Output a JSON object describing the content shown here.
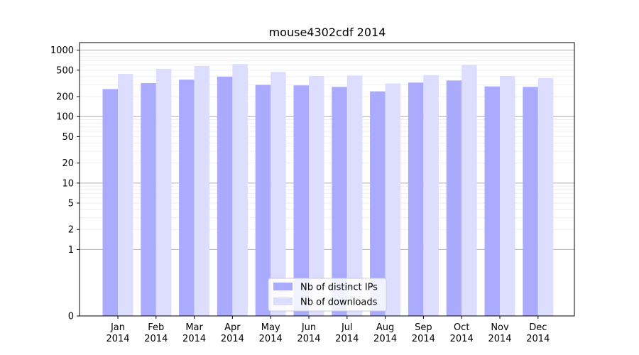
{
  "chart_data": {
    "type": "bar",
    "title": "mouse4302cdf 2014",
    "y_scale": "symlog",
    "ylim": [
      0,
      1300
    ],
    "y_ticks": [
      0,
      1,
      2,
      5,
      10,
      20,
      50,
      100,
      200,
      500,
      1000
    ],
    "grid": "horizontal",
    "legend_position": "bottom-center",
    "categories": [
      [
        "Jan",
        "2014"
      ],
      [
        "Feb",
        "2014"
      ],
      [
        "Mar",
        "2014"
      ],
      [
        "Apr",
        "2014"
      ],
      [
        "May",
        "2014"
      ],
      [
        "Jun",
        "2014"
      ],
      [
        "Jul",
        "2014"
      ],
      [
        "Aug",
        "2014"
      ],
      [
        "Sep",
        "2014"
      ],
      [
        "Oct",
        "2014"
      ],
      [
        "Nov",
        "2014"
      ],
      [
        "Dec",
        "2014"
      ]
    ],
    "series": [
      {
        "name": "Nb of distinct IPs",
        "color": "#aaaaff",
        "values": [
          260,
          320,
          360,
          400,
          300,
          295,
          280,
          240,
          325,
          350,
          285,
          280
        ]
      },
      {
        "name": "Nb of downloads",
        "color": "#ddddff",
        "values": [
          440,
          525,
          580,
          620,
          470,
          410,
          415,
          315,
          420,
          600,
          410,
          380
        ]
      }
    ]
  }
}
